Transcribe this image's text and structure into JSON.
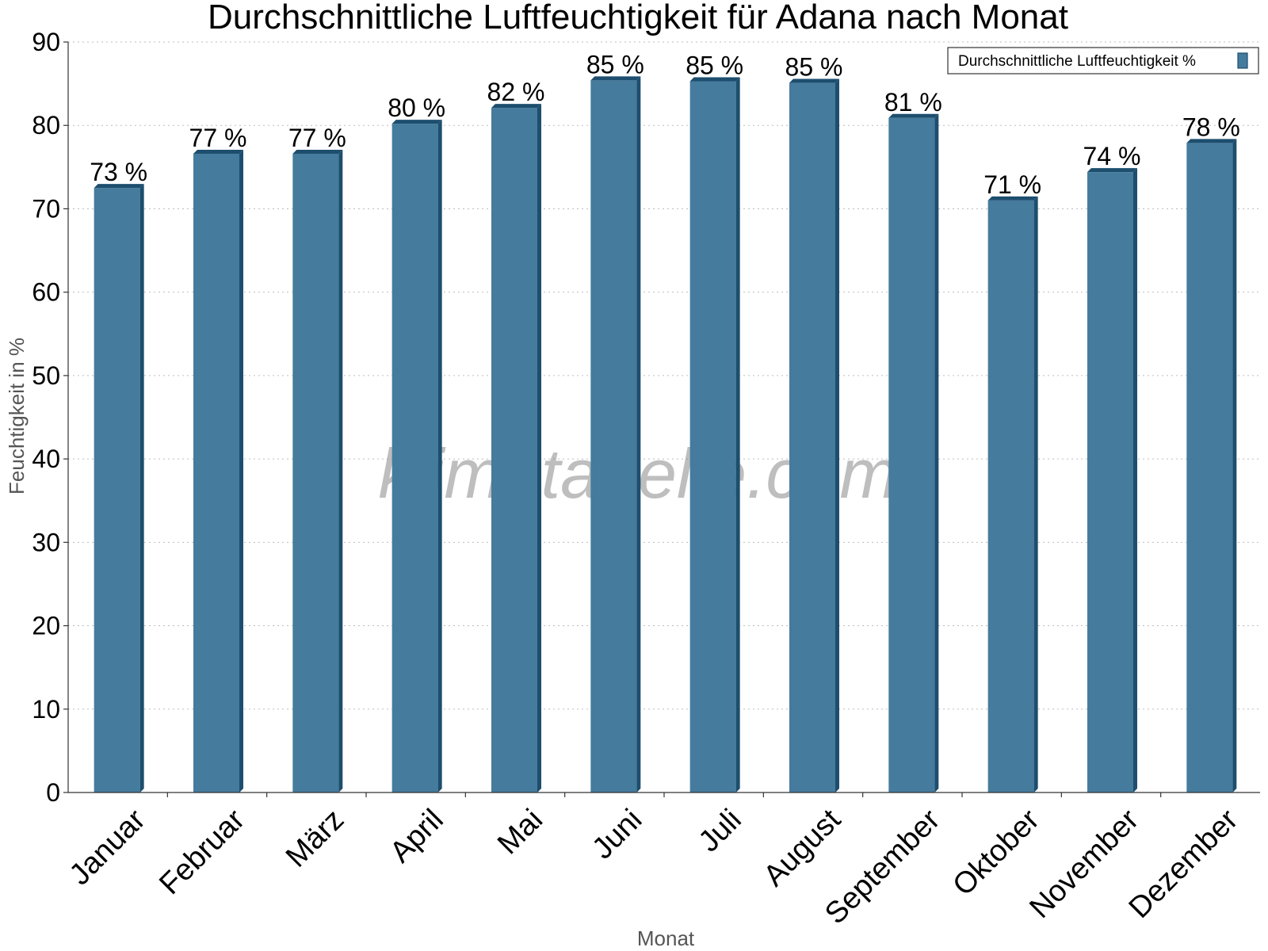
{
  "chart_data": {
    "type": "bar",
    "title": "Durchschnittliche Luftfeuchtigkeit für Adana nach Monat",
    "xlabel": "Monat",
    "ylabel": "Feuchtigkeit in %",
    "ylim": [
      0,
      90
    ],
    "yticks": [
      0,
      10,
      20,
      30,
      40,
      50,
      60,
      70,
      80,
      90
    ],
    "grid": true,
    "legend_position": "top-right",
    "categories": [
      "Januar",
      "Februar",
      "März",
      "April",
      "Mai",
      "Juni",
      "Juli",
      "August",
      "September",
      "Oktober",
      "November",
      "Dezember"
    ],
    "series": [
      {
        "name": "Durchschnittliche Luftfeuchtigkeit %",
        "values": [
          72.5,
          76.6,
          76.6,
          80.2,
          82.1,
          85.4,
          85.3,
          85.1,
          80.9,
          71.0,
          74.4,
          77.9
        ],
        "labels": [
          "73 %",
          "77 %",
          "77 %",
          "80 %",
          "82 %",
          "85 %",
          "85 %",
          "85 %",
          "81 %",
          "71 %",
          "74 %",
          "78 %"
        ],
        "color": "#457b9d",
        "side_color": "#1d4e6e",
        "top_color": "#1d4e6e"
      }
    ],
    "watermark": "klimatabelle.com"
  }
}
